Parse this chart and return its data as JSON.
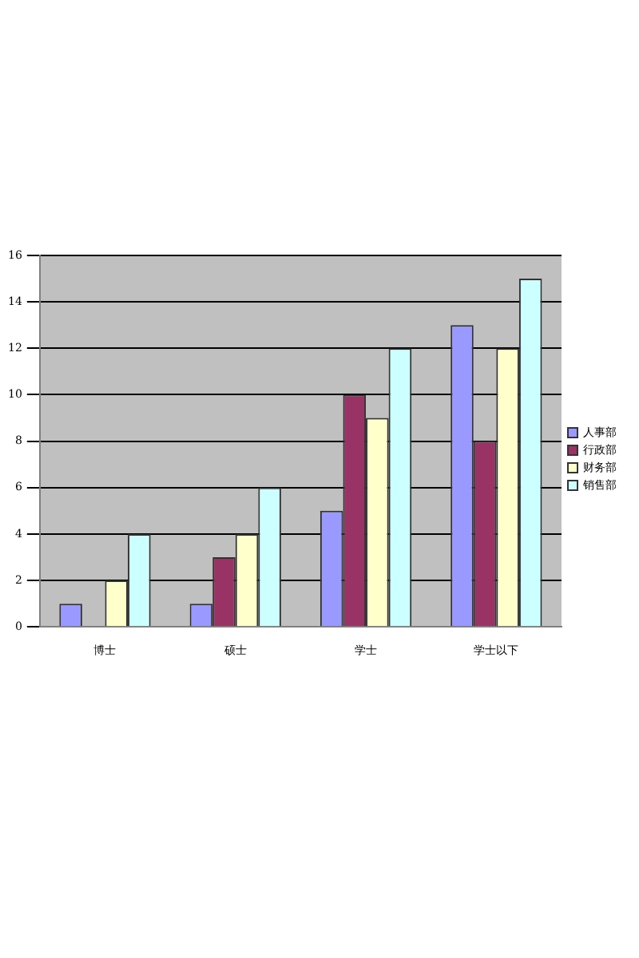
{
  "chart_data": {
    "type": "bar",
    "categories": [
      "博士",
      "硕士",
      "学士",
      "学士以下"
    ],
    "series": [
      {
        "name": "人事部",
        "color": "#9999ff",
        "values": [
          1,
          1,
          5,
          13
        ]
      },
      {
        "name": "行政部",
        "color": "#993366",
        "values": [
          0,
          3,
          10,
          8
        ]
      },
      {
        "name": "财务部",
        "color": "#ffffcc",
        "values": [
          2,
          4,
          9,
          12
        ]
      },
      {
        "name": "销售部",
        "color": "#ccffff",
        "values": [
          4,
          6,
          12,
          15
        ]
      }
    ],
    "ylim": [
      0,
      16
    ],
    "yticks": [
      0,
      2,
      4,
      6,
      8,
      10,
      12,
      14,
      16
    ],
    "grid": "y",
    "legend": "right"
  }
}
